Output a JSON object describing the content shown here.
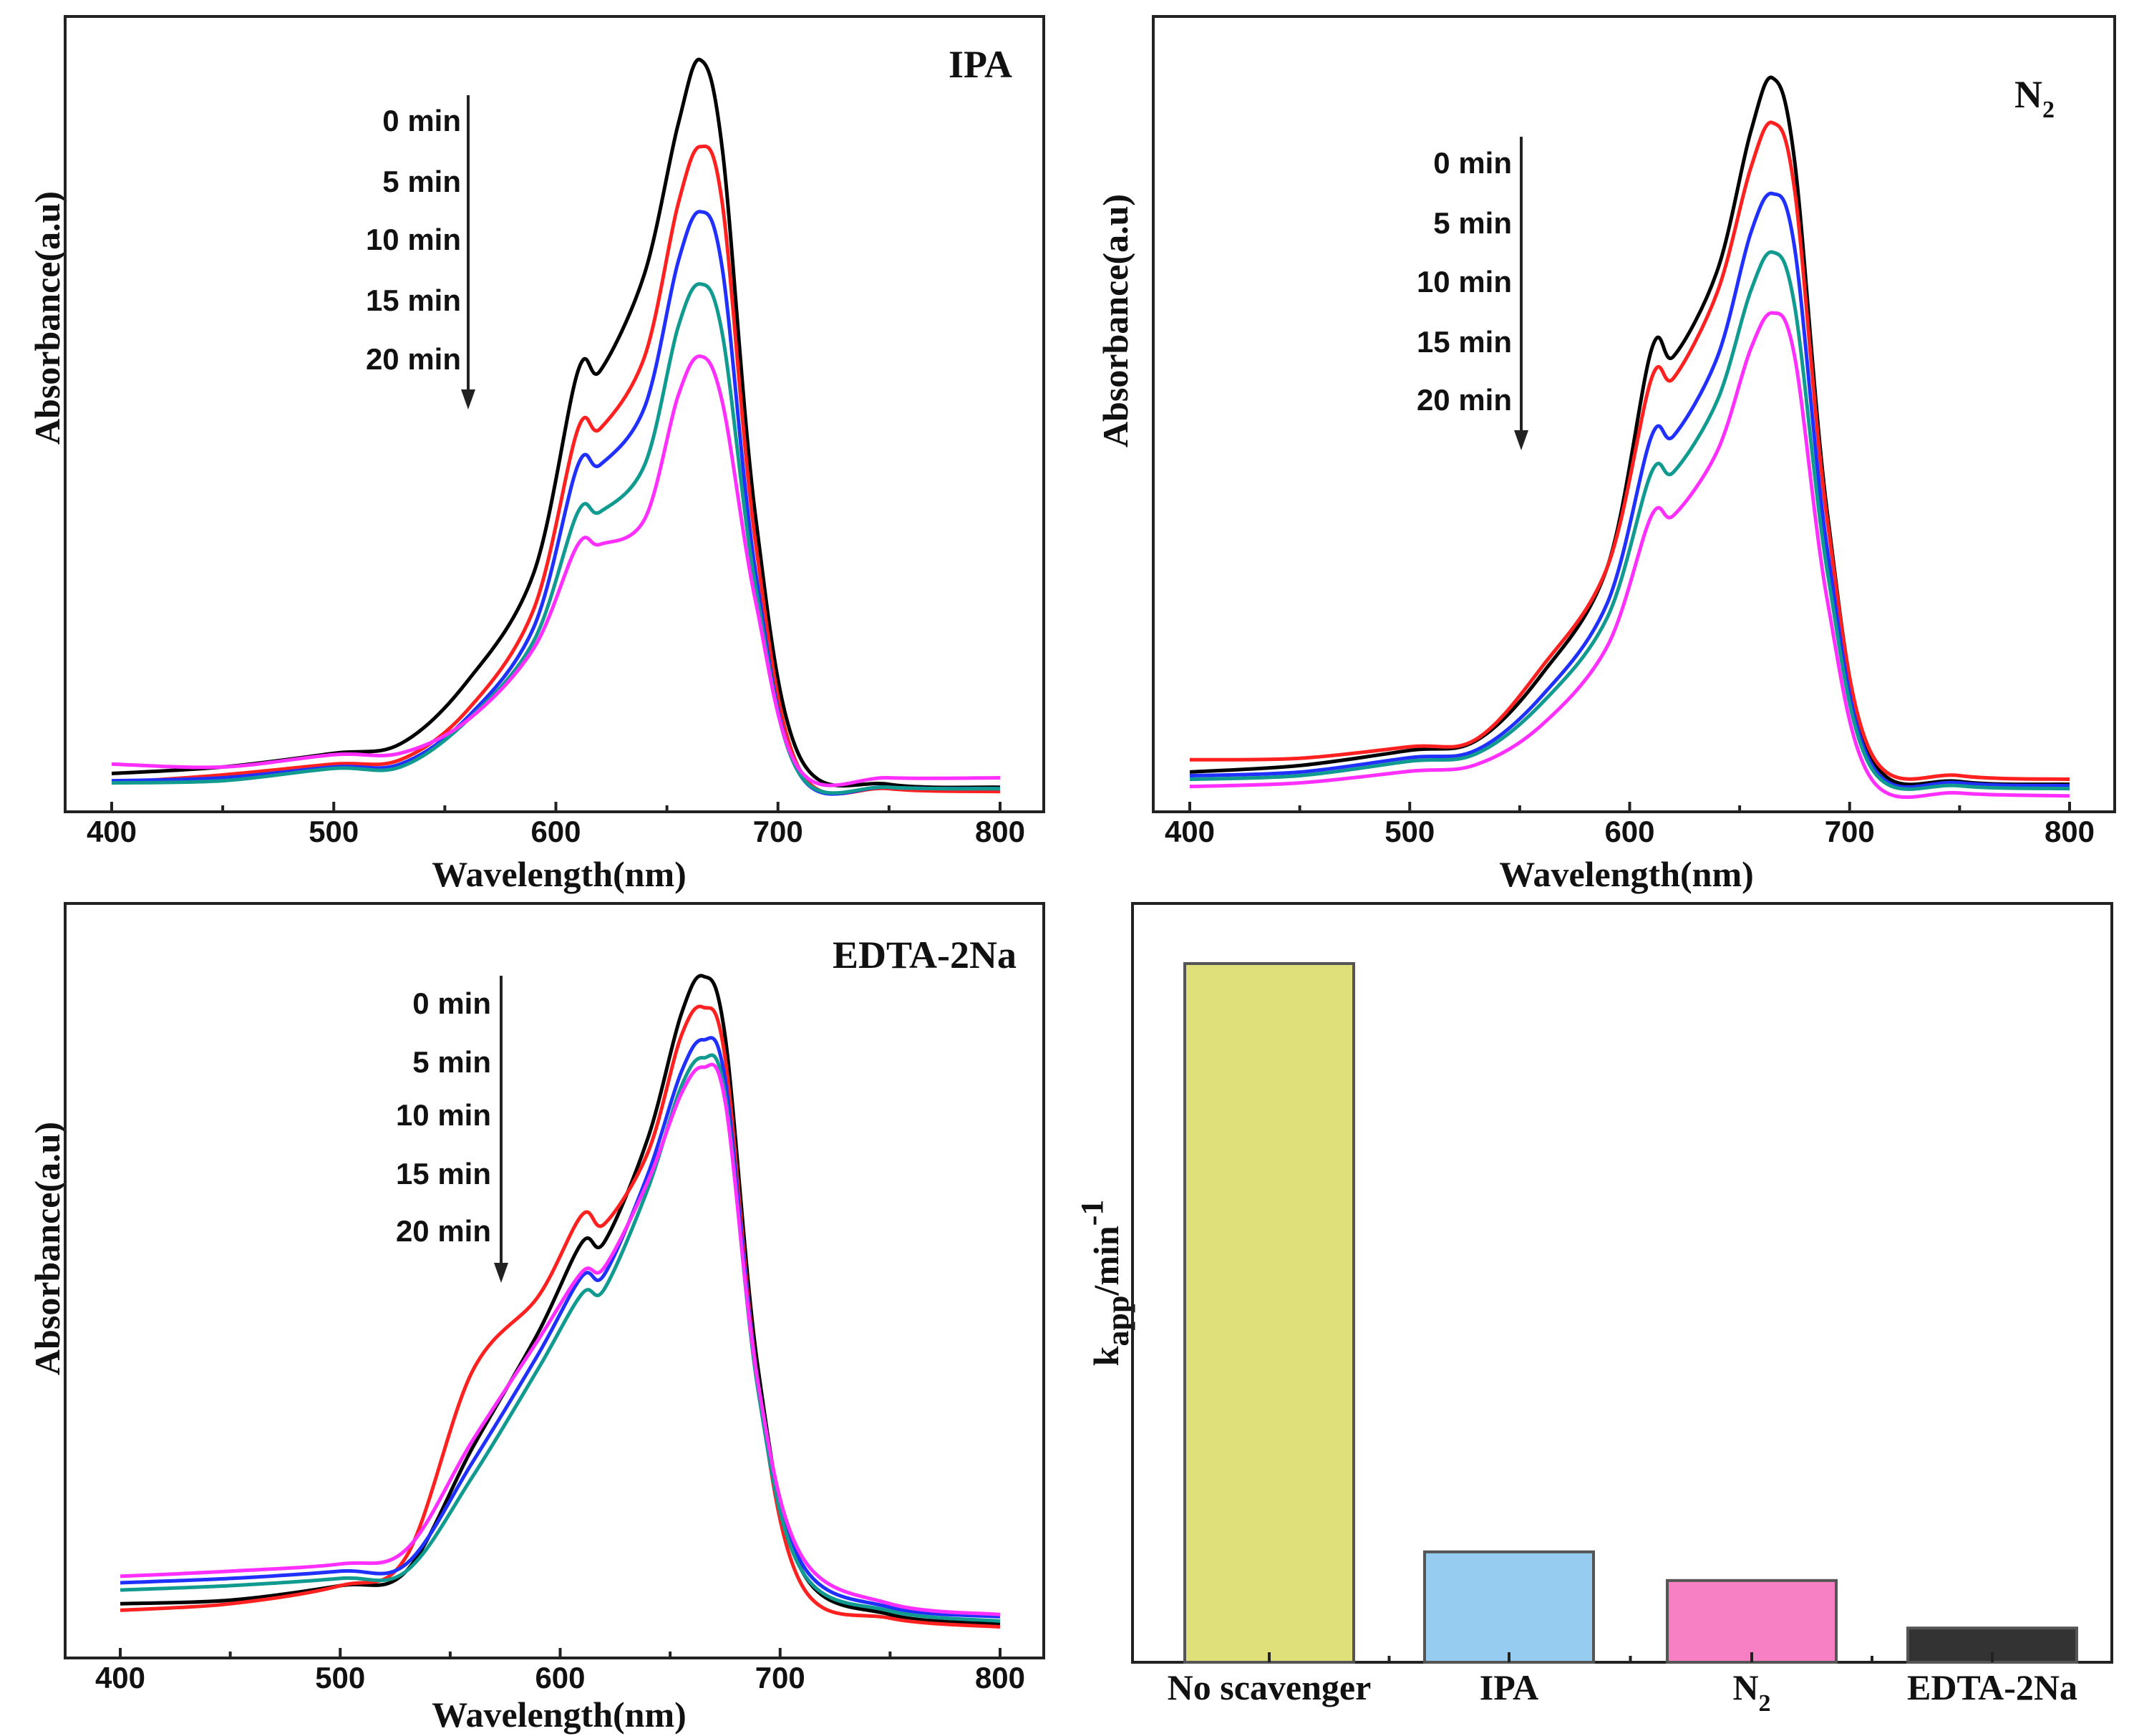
{
  "chart_data": [
    {
      "type": "line",
      "panel_label": "IPA",
      "xlabel": "Wavelength(nm)",
      "ylabel": "Absorbance(a.u)",
      "xlim": [
        380,
        820
      ],
      "ylim": [
        0,
        1.1
      ],
      "xticks": [
        "400",
        "500",
        "600",
        "700",
        "800"
      ],
      "grid": false,
      "legend": [
        "0 min",
        "5 min",
        "10 min",
        "15 min",
        "20 min"
      ],
      "legend_placement": "top-center with downward arrow",
      "x": [
        400,
        450,
        500,
        530,
        560,
        590,
        610,
        620,
        640,
        655,
        665,
        675,
        690,
        710,
        750,
        800
      ],
      "series": [
        {
          "name": "0 min",
          "color": "#000000",
          "values": [
            0.053,
            0.062,
            0.081,
            0.094,
            0.18,
            0.33,
            0.61,
            0.61,
            0.745,
            0.95,
            1.04,
            0.915,
            0.406,
            0.075,
            0.038,
            0.034
          ]
        },
        {
          "name": "5 min",
          "color": "#ff2020",
          "values": [
            0.04,
            0.051,
            0.066,
            0.072,
            0.14,
            0.28,
            0.53,
            0.53,
            0.63,
            0.84,
            0.92,
            0.84,
            0.37,
            0.057,
            0.032,
            0.028
          ]
        },
        {
          "name": "10 min",
          "color": "#2030ff",
          "values": [
            0.043,
            0.047,
            0.062,
            0.066,
            0.13,
            0.255,
            0.48,
            0.48,
            0.56,
            0.76,
            0.83,
            0.75,
            0.33,
            0.051,
            0.034,
            0.032
          ]
        },
        {
          "name": "15 min",
          "color": "#109a90",
          "values": [
            0.04,
            0.043,
            0.06,
            0.062,
            0.126,
            0.236,
            0.415,
            0.415,
            0.48,
            0.67,
            0.73,
            0.66,
            0.31,
            0.051,
            0.034,
            0.032
          ]
        },
        {
          "name": "20 min",
          "color": "#ff30ff",
          "values": [
            0.066,
            0.062,
            0.079,
            0.081,
            0.126,
            0.226,
            0.37,
            0.37,
            0.405,
            0.575,
            0.63,
            0.566,
            0.29,
            0.057,
            0.047,
            0.047
          ]
        }
      ]
    },
    {
      "type": "line",
      "panel_label": "N",
      "panel_label_sub": "2",
      "xlabel": "Wavelength(nm)",
      "ylabel": "Absorbance(a.u)",
      "xlim": [
        380,
        820
      ],
      "ylim": [
        0,
        1.1
      ],
      "xticks": [
        "400",
        "500",
        "600",
        "700",
        "800"
      ],
      "grid": false,
      "legend": [
        "0 min",
        "5 min",
        "10 min",
        "15 min",
        "20 min"
      ],
      "legend_placement": "top-center with downward arrow",
      "x": [
        400,
        450,
        500,
        530,
        560,
        590,
        610,
        620,
        640,
        655,
        665,
        675,
        690,
        710,
        750,
        800
      ],
      "series": [
        {
          "name": "0 min",
          "color": "#000000",
          "values": [
            0.055,
            0.064,
            0.085,
            0.098,
            0.19,
            0.34,
            0.64,
            0.63,
            0.75,
            0.94,
            1.015,
            0.9,
            0.41,
            0.075,
            0.042,
            0.038
          ]
        },
        {
          "name": "5 min",
          "color": "#ff2020",
          "values": [
            0.072,
            0.074,
            0.09,
            0.1,
            0.2,
            0.34,
            0.6,
            0.6,
            0.72,
            0.89,
            0.953,
            0.86,
            0.4,
            0.08,
            0.05,
            0.045
          ]
        },
        {
          "name": "10 min",
          "color": "#2030ff",
          "values": [
            0.05,
            0.055,
            0.075,
            0.085,
            0.16,
            0.29,
            0.52,
            0.52,
            0.63,
            0.8,
            0.855,
            0.78,
            0.36,
            0.065,
            0.04,
            0.036
          ]
        },
        {
          "name": "15 min",
          "color": "#109a90",
          "values": [
            0.045,
            0.05,
            0.07,
            0.08,
            0.15,
            0.27,
            0.47,
            0.47,
            0.57,
            0.72,
            0.774,
            0.7,
            0.33,
            0.06,
            0.036,
            0.032
          ]
        },
        {
          "name": "20 min",
          "color": "#ff30ff",
          "values": [
            0.035,
            0.04,
            0.056,
            0.065,
            0.12,
            0.23,
            0.41,
            0.41,
            0.5,
            0.64,
            0.69,
            0.63,
            0.29,
            0.045,
            0.026,
            0.022
          ]
        }
      ]
    },
    {
      "type": "line",
      "panel_label": "EDTA-2Na",
      "xlabel": "Wavelength(nm)",
      "ylabel": "Absorbance(a.u)",
      "xlim": [
        380,
        820
      ],
      "ylim": [
        0,
        1.1
      ],
      "xticks": [
        "400",
        "500",
        "600",
        "700",
        "800"
      ],
      "grid": false,
      "legend": [
        "0 min",
        "5 min",
        "10 min",
        "15 min",
        "20 min"
      ],
      "legend_placement": "top-center with downward arrow",
      "x": [
        400,
        450,
        500,
        530,
        560,
        590,
        610,
        620,
        640,
        655,
        665,
        675,
        690,
        710,
        750,
        800
      ],
      "series": [
        {
          "name": "0 min",
          "color": "#000000",
          "values": [
            0.075,
            0.08,
            0.1,
            0.12,
            0.29,
            0.45,
            0.575,
            0.575,
            0.72,
            0.89,
            0.943,
            0.86,
            0.4,
            0.12,
            0.06,
            0.047
          ]
        },
        {
          "name": "5 min",
          "color": "#ff2020",
          "values": [
            0.066,
            0.075,
            0.1,
            0.14,
            0.396,
            0.5,
            0.613,
            0.6,
            0.7,
            0.86,
            0.9,
            0.83,
            0.38,
            0.1,
            0.055,
            0.043
          ]
        },
        {
          "name": "10 min",
          "color": "#2030ff",
          "values": [
            0.104,
            0.11,
            0.12,
            0.13,
            0.27,
            0.42,
            0.528,
            0.53,
            0.67,
            0.81,
            0.855,
            0.8,
            0.38,
            0.13,
            0.07,
            0.057
          ]
        },
        {
          "name": "15 min",
          "color": "#109a90",
          "values": [
            0.094,
            0.1,
            0.11,
            0.12,
            0.25,
            0.4,
            0.504,
            0.51,
            0.65,
            0.79,
            0.83,
            0.78,
            0.37,
            0.12,
            0.065,
            0.051
          ]
        },
        {
          "name": "20 min",
          "color": "#ff30ff",
          "values": [
            0.113,
            0.12,
            0.13,
            0.15,
            0.3,
            0.44,
            0.534,
            0.54,
            0.66,
            0.78,
            0.817,
            0.77,
            0.38,
            0.14,
            0.075,
            0.06
          ]
        }
      ]
    },
    {
      "type": "bar",
      "ylabel": "k",
      "ylabel_sub": "app",
      "ylabel_suffix": "/min",
      "ylabel_sup": "-1",
      "ylim": [
        0,
        1.1
      ],
      "categories": [
        "No scavenger",
        "IPA",
        "N",
        "EDTA-2Na"
      ],
      "category_sub": [
        "",
        "",
        "2",
        ""
      ],
      "values": [
        1.0,
        0.158,
        0.117,
        0.049
      ],
      "colors": [
        "#dfe07a",
        "#96ccf0",
        "#f77fc4",
        "#333333"
      ]
    }
  ]
}
